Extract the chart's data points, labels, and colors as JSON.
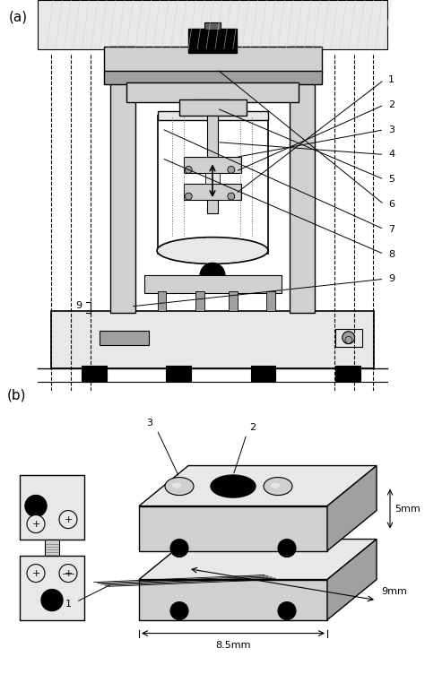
{
  "bg_color": "#ffffff",
  "light_gray": "#d0d0d0",
  "mid_gray": "#a0a0a0",
  "dark_gray": "#606060",
  "very_light_gray": "#e8e8e8",
  "black": "#000000",
  "label_a": "(a)",
  "label_b": "(b)",
  "labels_right": [
    "1",
    "2",
    "3",
    "4",
    "5",
    "6",
    "7",
    "8",
    "9"
  ],
  "labels_b": [
    "1",
    "2",
    "3"
  ],
  "dim_85": "8.5mm",
  "dim_9": "9mm",
  "dim_5": "5mm"
}
